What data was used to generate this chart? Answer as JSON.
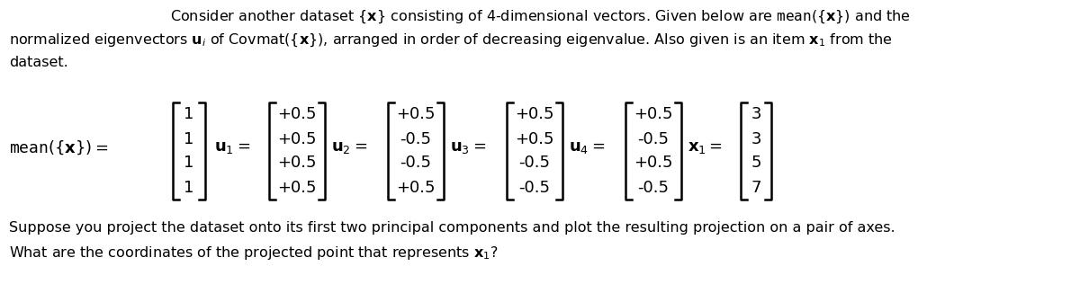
{
  "bg_color": "#ffffff",
  "text_color": "#000000",
  "mean_vec": [
    "1",
    "1",
    "1",
    "1"
  ],
  "u1": [
    "+0.5",
    "+0.5",
    "+0.5",
    "+0.5"
  ],
  "u2": [
    "+0.5",
    "-0.5",
    "-0.5",
    "+0.5"
  ],
  "u3": [
    "+0.5",
    "+0.5",
    "-0.5",
    "-0.5"
  ],
  "u4": [
    "+0.5",
    "-0.5",
    "+0.5",
    "-0.5"
  ],
  "x1": [
    "3",
    "3",
    "5",
    "7"
  ],
  "line1": "Consider another dataset $\\{\\mathbf{x}\\}$ consisting of 4-dimensional vectors. Given below are $\\mathtt{mean}(\\{\\mathbf{x}\\})$ and the",
  "line2": "normalized eigenvectors $\\mathbf{u}_i$ of $\\mathrm{Covmat}(\\{\\mathbf{x}\\})$, arranged in order of decreasing eigenvalue. Also given is an item $\\mathbf{x}_1$ from the",
  "line3": "dataset.",
  "line4": "Suppose you project the dataset onto its first two principal components and plot the resulting projection on a pair of axes.",
  "line5": "What are the coordinates of the projected point that represents $\\mathbf{x}_1$?",
  "mean_label": "$\\mathtt{mean}(\\{\\mathbf{x}\\}) =$",
  "u1_label": "$\\mathbf{u}_1 =$",
  "u2_label": "$\\mathbf{u}_2 =$",
  "u3_label": "$\\mathbf{u}_3 =$",
  "u4_label": "$\\mathbf{u}_4 =$",
  "x1_label": "$\\mathbf{x}_1 =$"
}
